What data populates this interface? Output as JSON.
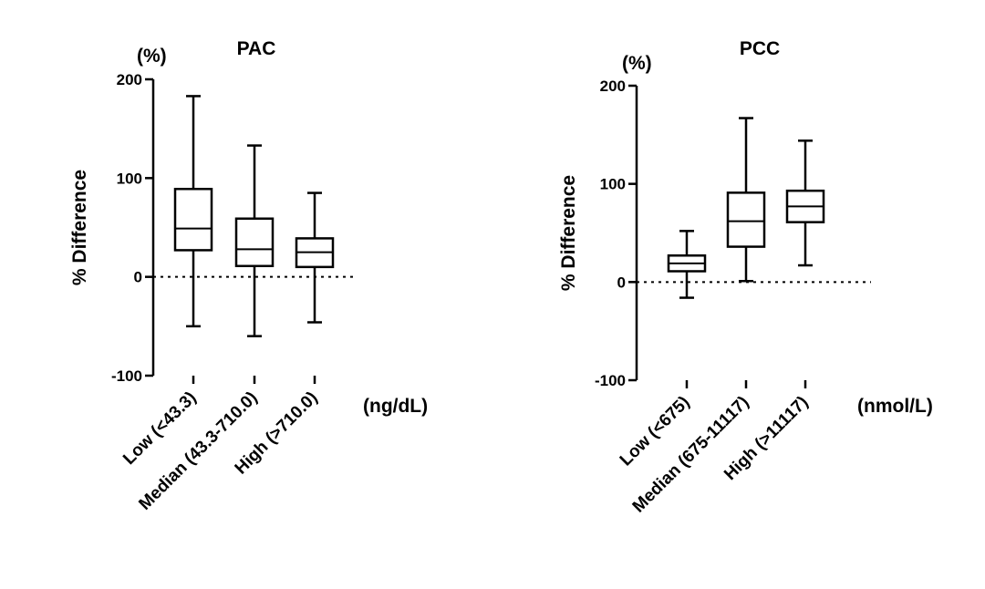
{
  "chart_data": [
    {
      "type": "boxplot",
      "title": "PAC",
      "unit_label": "(%)",
      "ylabel": "% Difference",
      "x_unit": "(ng/dL)",
      "ylim": [
        -100,
        200
      ],
      "yticks": [
        -100,
        0,
        100,
        200
      ],
      "yticklabels": [
        "-100",
        "0",
        "100",
        "200"
      ],
      "reference_line": 0,
      "categories": [
        "Low (<43.3)",
        "Median (43.3-710.0)",
        "High (>710.0)"
      ],
      "boxes": [
        {
          "min": -50,
          "q1": 27,
          "median": 49,
          "q3": 89,
          "max": 183
        },
        {
          "min": -60,
          "q1": 11,
          "median": 28,
          "q3": 59,
          "max": 133
        },
        {
          "min": -46,
          "q1": 10,
          "median": 25,
          "q3": 39,
          "max": 85
        }
      ],
      "colors": {
        "stroke": "#000000",
        "reference": "#000000"
      }
    },
    {
      "type": "boxplot",
      "title": "PCC",
      "unit_label": "(%)",
      "ylabel": "% Difference",
      "x_unit": "(nmol/L)",
      "ylim": [
        -100,
        200
      ],
      "yticks": [
        -100,
        0,
        100,
        200
      ],
      "yticklabels": [
        "-100",
        "0",
        "100",
        "200"
      ],
      "reference_line": 0,
      "categories": [
        "Low (<675)",
        "Median (675-11117)",
        "High (>11117)"
      ],
      "boxes": [
        {
          "min": -16,
          "q1": 11,
          "median": 19,
          "q3": 27,
          "max": 52
        },
        {
          "min": 1,
          "q1": 36,
          "median": 62,
          "q3": 91,
          "max": 167
        },
        {
          "min": 17,
          "q1": 61,
          "median": 77,
          "q3": 93,
          "max": 144
        }
      ],
      "colors": {
        "stroke": "#000000",
        "reference": "#000000"
      }
    }
  ]
}
